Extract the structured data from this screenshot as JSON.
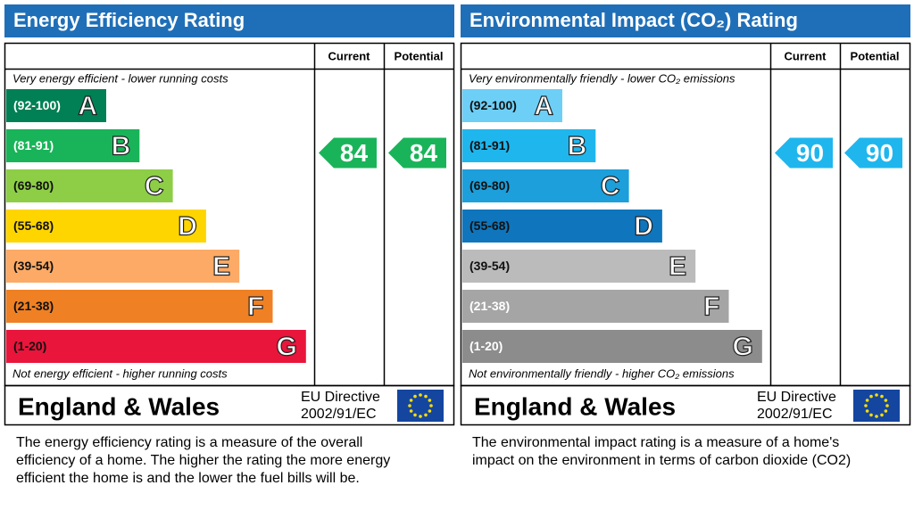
{
  "panels": [
    {
      "title": "Energy Efficiency Rating",
      "current_label": "Current",
      "potential_label": "Potential",
      "top_note": "Very energy efficient - lower running costs",
      "bottom_note": "Not energy efficient - higher running costs",
      "bands": [
        {
          "range": "(92-100)",
          "letter": "A",
          "color": "#008054",
          "text_color": "#ffffff"
        },
        {
          "range": "(81-91)",
          "letter": "B",
          "color": "#19b459",
          "text_color": "#ffffff"
        },
        {
          "range": "(69-80)",
          "letter": "C",
          "color": "#8dce46",
          "text_color": "#111111"
        },
        {
          "range": "(55-68)",
          "letter": "D",
          "color": "#ffd500",
          "text_color": "#111111"
        },
        {
          "range": "(39-54)",
          "letter": "E",
          "color": "#fcaa65",
          "text_color": "#111111"
        },
        {
          "range": "(21-38)",
          "letter": "F",
          "color": "#ef8023",
          "text_color": "#111111"
        },
        {
          "range": "(1-20)",
          "letter": "G",
          "color": "#e9153b",
          "text_color": "#111111"
        }
      ],
      "current": 84,
      "potential": 84,
      "region": "England & Wales",
      "directive": [
        "EU Directive",
        "2002/91/EC"
      ],
      "description": [
        "The energy efficiency rating is a measure of the overall",
        "efficiency of a home.  The higher the rating the more energy",
        "efficient the home is and the lower the fuel bills will be."
      ]
    },
    {
      "title": "Environmental Impact (CO₂) Rating",
      "current_label": "Current",
      "potential_label": "Potential",
      "top_note": "Very environmentally friendly - lower CO₂ emissions",
      "bottom_note": "Not environmentally friendly - higher CO₂ emissions",
      "bands": [
        {
          "range": "(92-100)",
          "letter": "A",
          "color": "#6dcff6",
          "text_color": "#111111"
        },
        {
          "range": "(81-91)",
          "letter": "B",
          "color": "#1fb6ee",
          "text_color": "#111111"
        },
        {
          "range": "(69-80)",
          "letter": "C",
          "color": "#1c9fdb",
          "text_color": "#111111"
        },
        {
          "range": "(55-68)",
          "letter": "D",
          "color": "#0f76bd",
          "text_color": "#111111"
        },
        {
          "range": "(39-54)",
          "letter": "E",
          "color": "#bbbbbb",
          "text_color": "#111111"
        },
        {
          "range": "(21-38)",
          "letter": "F",
          "color": "#a5a5a5",
          "text_color": "#ffffff"
        },
        {
          "range": "(1-20)",
          "letter": "G",
          "color": "#8c8c8c",
          "text_color": "#ffffff"
        }
      ],
      "current": 90,
      "potential": 90,
      "region": "England & Wales",
      "directive": [
        "EU Directive",
        "2002/91/EC"
      ],
      "description": [
        "The environmental impact rating is a measure of a home's",
        "impact on the environment in terms of carbon dioxide (CO2)"
      ]
    }
  ]
}
